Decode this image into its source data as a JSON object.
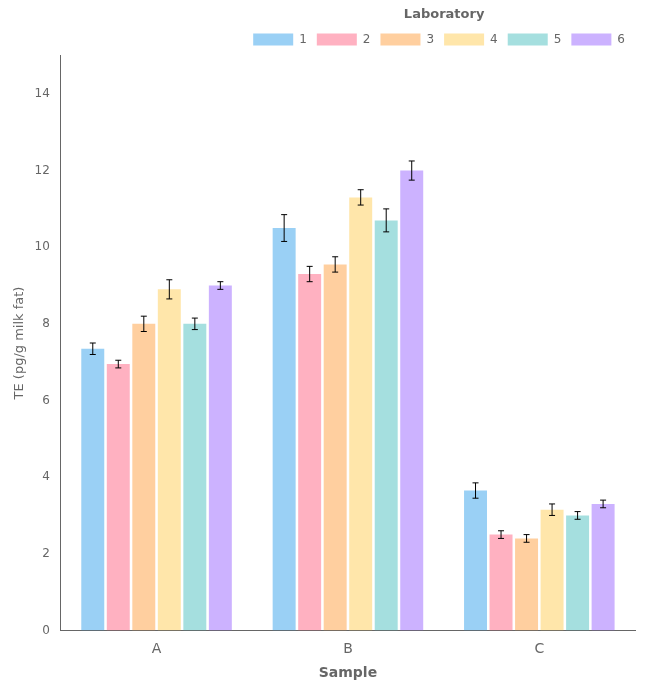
{
  "chart_data": {
    "type": "bar",
    "categories": [
      "A",
      "B",
      "C"
    ],
    "series": [
      {
        "name": "1",
        "values": [
          7.35,
          10.5,
          3.65
        ],
        "errors": [
          0.15,
          0.35,
          0.2
        ]
      },
      {
        "name": "2",
        "values": [
          6.95,
          9.3,
          2.5
        ],
        "errors": [
          0.1,
          0.2,
          0.1
        ]
      },
      {
        "name": "3",
        "values": [
          8.0,
          9.55,
          2.4
        ],
        "errors": [
          0.2,
          0.2,
          0.1
        ]
      },
      {
        "name": "4",
        "values": [
          8.9,
          11.3,
          3.15
        ],
        "errors": [
          0.25,
          0.2,
          0.15
        ]
      },
      {
        "name": "5",
        "values": [
          8.0,
          10.7,
          3.0
        ],
        "errors": [
          0.15,
          0.3,
          0.1
        ]
      },
      {
        "name": "6",
        "values": [
          9.0,
          12.0,
          3.3
        ],
        "errors": [
          0.1,
          0.25,
          0.1
        ]
      }
    ],
    "xlabel": "Sample",
    "ylabel": "TE (pg/g milk fat)",
    "legend_title": "Laboratory",
    "legend": "upper right",
    "ylim": [
      0,
      15
    ],
    "yticks": [
      0,
      2,
      4,
      6,
      8,
      10,
      12,
      14
    ],
    "grid": false
  }
}
